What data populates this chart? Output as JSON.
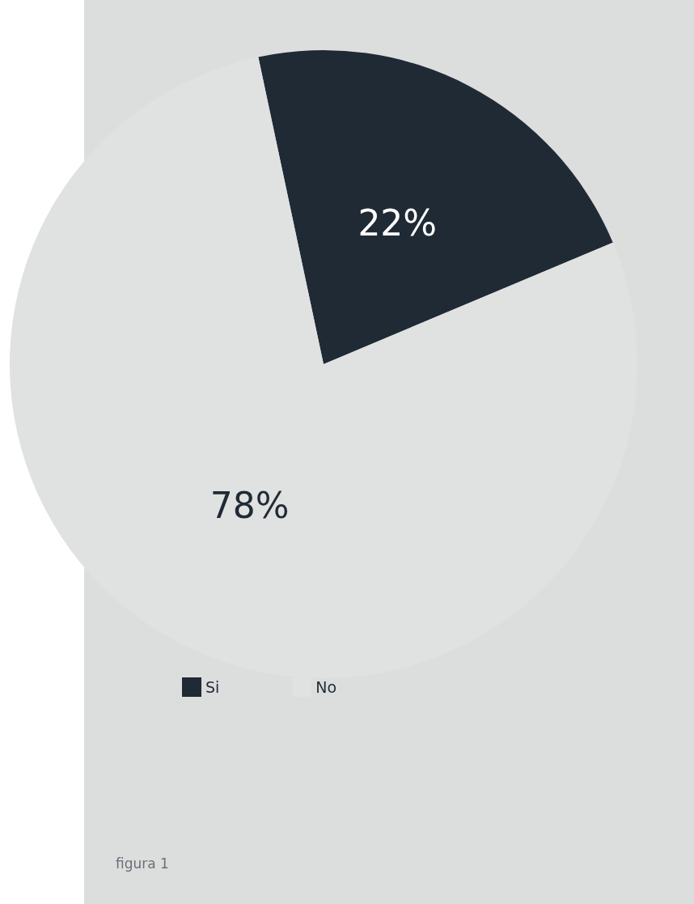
{
  "chart_data": {
    "type": "pie",
    "categories": [
      "Si",
      "No"
    ],
    "values": [
      22,
      78
    ],
    "colors": [
      "#1f2a35",
      "#e0e1e1"
    ],
    "value_labels": [
      "22%",
      "78%"
    ],
    "legend": "bottom",
    "annotations": [
      "figura 1"
    ]
  }
}
